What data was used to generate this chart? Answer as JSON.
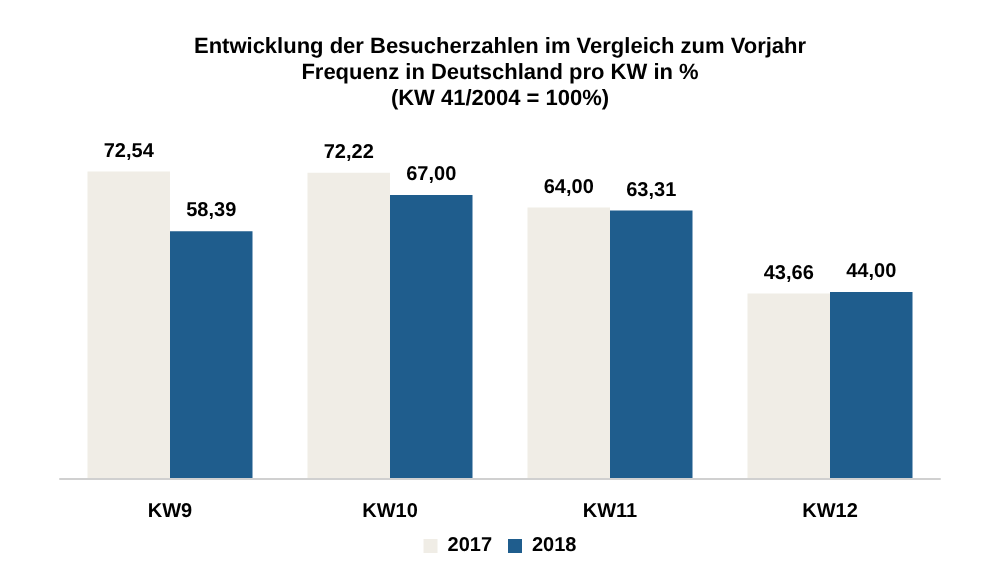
{
  "chart_data": {
    "type": "bar",
    "title": "Entwicklung der Besucherzahlen im Vergleich zum Vorjahr\nFrequenz in Deutschland pro KW in %\n(KW 41/2004 = 100%)",
    "categories": [
      "KW9",
      "KW10",
      "KW11",
      "KW12"
    ],
    "series": [
      {
        "name": "2017",
        "color": "#f0ede6",
        "values": [
          72.54,
          72.22,
          64.0,
          43.66
        ],
        "value_labels": [
          "72,54",
          "72,22",
          "64,00",
          "43,66"
        ]
      },
      {
        "name": "2018",
        "color": "#1f5d8d",
        "values": [
          58.39,
          67.0,
          63.31,
          44.0
        ],
        "value_labels": [
          "58,39",
          "67,00",
          "63,31",
          "44,00"
        ]
      }
    ],
    "legend": "bottom"
  }
}
